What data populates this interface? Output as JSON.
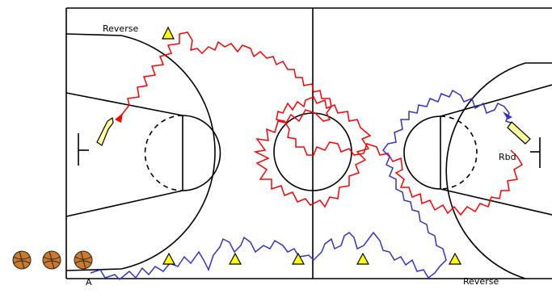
{
  "labels": {
    "reverse_top": "Reverse",
    "reverse_bottom": "Reverse",
    "rbd": "Rbd",
    "player_a": "A"
  },
  "colors": {
    "court_line": "#000000",
    "red_path": "#ff0000",
    "blue_path": "#3333cc",
    "cone_fill": "#ffff00",
    "ball_fill": "#cc7a29",
    "ball_seam": "#222222",
    "arrow_fill": "#ffff99"
  },
  "icons": [
    "basketball-icon",
    "cone-icon",
    "pass-arrow-icon"
  ]
}
